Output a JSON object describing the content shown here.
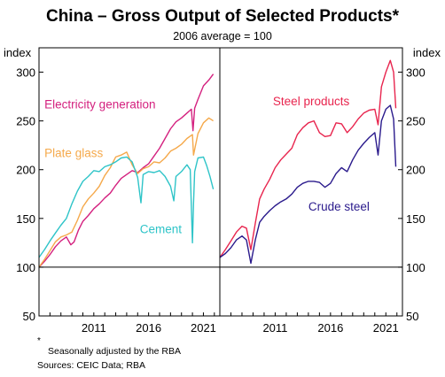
{
  "chart_data": {
    "type": "line",
    "title": "China – Gross Output of Selected Products*",
    "subtitle": "2006 average = 100",
    "y_unit_left": "index",
    "y_unit_right": "index",
    "ylim": [
      50,
      325
    ],
    "yticks": [
      50,
      100,
      150,
      200,
      250,
      300
    ],
    "xlim": [
      2006,
      2022.5
    ],
    "xticks": [
      2011,
      2016,
      2021
    ],
    "footnote_marker": "*",
    "footnote": "Seasonally adjusted by the RBA",
    "sources": "Sources: CEIC Data; RBA",
    "colors": {
      "electricity": "#d4217f",
      "plate_glass": "#f5a94b",
      "cement": "#2ec4c8",
      "steel_products": "#e8254e",
      "crude_steel": "#2a1a8c"
    },
    "panels": [
      {
        "id": "left",
        "series": [
          {
            "key": "electricity",
            "name": "Electricity generation",
            "x": [
              2006.0,
              2006.5,
              2007.0,
              2007.5,
              2008.0,
              2008.5,
              2008.9,
              2009.2,
              2009.6,
              2010.0,
              2010.5,
              2011.0,
              2011.5,
              2012.0,
              2012.5,
              2013.0,
              2013.5,
              2014.0,
              2014.5,
              2015.0,
              2015.5,
              2016.0,
              2016.5,
              2017.0,
              2017.5,
              2018.0,
              2018.5,
              2019.0,
              2019.5,
              2019.9,
              2020.05,
              2020.2,
              2020.5,
              2021.0,
              2021.5,
              2021.9
            ],
            "y": [
              100,
              106,
              113,
              121,
              127,
              131,
              123,
              126,
              138,
              147,
              153,
              160,
              165,
              171,
              176,
              184,
              191,
              195,
              199,
              197,
              202,
              206,
              214,
              222,
              232,
              242,
              249,
              253,
              258,
              262,
              240,
              263,
              272,
              286,
              292,
              298
            ]
          },
          {
            "key": "plate_glass",
            "name": "Plate glass",
            "x": [
              2006.0,
              2006.5,
              2007.0,
              2007.5,
              2008.0,
              2008.5,
              2009.0,
              2009.5,
              2010.0,
              2010.5,
              2011.0,
              2011.5,
              2012.0,
              2012.5,
              2013.0,
              2013.5,
              2014.0,
              2014.5,
              2015.0,
              2015.5,
              2016.0,
              2016.5,
              2017.0,
              2017.5,
              2018.0,
              2018.5,
              2019.0,
              2019.5,
              2020.0,
              2020.1,
              2020.5,
              2021.0,
              2021.5,
              2021.9
            ],
            "y": [
              100,
              108,
              117,
              126,
              131,
              133,
              136,
              148,
              162,
              170,
              176,
              183,
              194,
              202,
              213,
              215,
              218,
              205,
              196,
              201,
              203,
              208,
              207,
              212,
              219,
              222,
              226,
              232,
              236,
              215,
              237,
              248,
              253,
              250
            ]
          },
          {
            "key": "cement",
            "name": "Cement",
            "x": [
              2006.0,
              2006.5,
              2007.0,
              2007.5,
              2008.0,
              2008.5,
              2009.0,
              2009.5,
              2010.0,
              2010.5,
              2011.0,
              2011.5,
              2012.0,
              2012.5,
              2013.0,
              2013.5,
              2014.0,
              2014.5,
              2015.0,
              2015.3,
              2015.5,
              2016.0,
              2016.5,
              2017.0,
              2017.5,
              2018.0,
              2018.3,
              2018.5,
              2019.0,
              2019.5,
              2019.8,
              2020.0,
              2020.1,
              2020.2,
              2020.5,
              2021.0,
              2021.3,
              2021.6,
              2021.9
            ],
            "y": [
              110,
              118,
              127,
              135,
              143,
              150,
              165,
              178,
              188,
              193,
              199,
              198,
              203,
              205,
              208,
              212,
              213,
              208,
              192,
              166,
              195,
              198,
              197,
              199,
              193,
              183,
              168,
              193,
              198,
              205,
              200,
              125,
              165,
              198,
              212,
              213,
              204,
              193,
              180
            ]
          }
        ],
        "labels": [
          {
            "series": "electricity",
            "text": "Electricity generation",
            "x": 2006.5,
            "y": 263
          },
          {
            "series": "plate_glass",
            "text": "Plate glass",
            "x": 2006.5,
            "y": 213
          },
          {
            "series": "cement",
            "text": "Cement",
            "x": 2015.2,
            "y": 135
          }
        ]
      },
      {
        "id": "right",
        "series": [
          {
            "key": "steel_products",
            "name": "Steel products",
            "x": [
              2006.0,
              2006.5,
              2007.0,
              2007.5,
              2008.0,
              2008.4,
              2008.8,
              2009.2,
              2009.6,
              2010.0,
              2010.5,
              2011.0,
              2011.5,
              2012.0,
              2012.5,
              2013.0,
              2013.5,
              2014.0,
              2014.5,
              2015.0,
              2015.5,
              2016.0,
              2016.5,
              2017.0,
              2017.5,
              2018.0,
              2018.5,
              2019.0,
              2019.5,
              2020.0,
              2020.3,
              2020.6,
              2021.0,
              2021.4,
              2021.7,
              2021.9
            ],
            "y": [
              110,
              118,
              127,
              136,
              142,
              140,
              118,
              145,
              170,
              180,
              190,
              202,
              210,
              216,
              222,
              236,
              243,
              248,
              250,
              238,
              234,
              235,
              248,
              247,
              238,
              244,
              252,
              258,
              261,
              262,
              246,
              285,
              300,
              312,
              300,
              263
            ]
          },
          {
            "key": "crude_steel",
            "name": "Crude steel",
            "x": [
              2006.0,
              2006.5,
              2007.0,
              2007.5,
              2008.0,
              2008.4,
              2008.8,
              2009.2,
              2009.6,
              2010.0,
              2010.5,
              2011.0,
              2011.5,
              2012.0,
              2012.5,
              2013.0,
              2013.5,
              2014.0,
              2014.5,
              2015.0,
              2015.5,
              2016.0,
              2016.5,
              2017.0,
              2017.5,
              2018.0,
              2018.5,
              2019.0,
              2019.5,
              2020.0,
              2020.3,
              2020.6,
              2021.0,
              2021.4,
              2021.7,
              2021.9
            ],
            "y": [
              110,
              114,
              120,
              128,
              132,
              128,
              104,
              128,
              146,
              152,
              158,
              163,
              167,
              170,
              175,
              182,
              186,
              188,
              188,
              187,
              182,
              186,
              196,
              202,
              198,
              210,
              220,
              227,
              233,
              238,
              215,
              250,
              262,
              266,
              252,
              203
            ]
          }
        ],
        "labels": [
          {
            "series": "steel_products",
            "text": "Steel products",
            "x": 2010.8,
            "y": 266
          },
          {
            "series": "crude_steel",
            "text": "Crude steel",
            "x": 2014.0,
            "y": 158
          }
        ]
      }
    ]
  }
}
